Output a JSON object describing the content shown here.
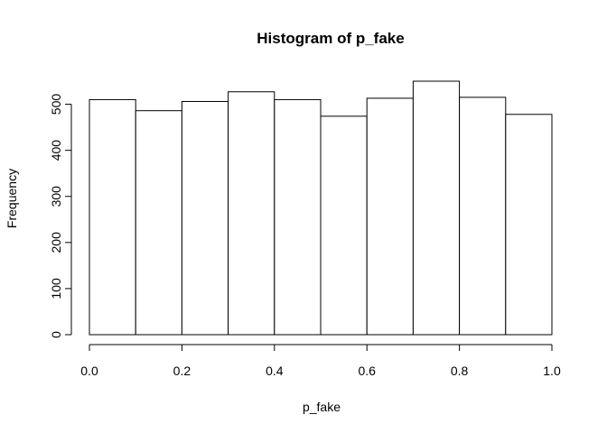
{
  "chart_data": {
    "type": "bar",
    "title": "Histogram of p_fake",
    "xlabel": "p_fake",
    "ylabel": "Frequency",
    "bins": [
      {
        "start": 0.0,
        "end": 0.1,
        "value": 510
      },
      {
        "start": 0.1,
        "end": 0.2,
        "value": 486
      },
      {
        "start": 0.2,
        "end": 0.3,
        "value": 506
      },
      {
        "start": 0.3,
        "end": 0.4,
        "value": 527
      },
      {
        "start": 0.4,
        "end": 0.5,
        "value": 510
      },
      {
        "start": 0.5,
        "end": 0.6,
        "value": 474
      },
      {
        "start": 0.6,
        "end": 0.7,
        "value": 513
      },
      {
        "start": 0.7,
        "end": 0.8,
        "value": 550
      },
      {
        "start": 0.8,
        "end": 0.9,
        "value": 515
      },
      {
        "start": 0.9,
        "end": 1.0,
        "value": 478
      }
    ],
    "xlim": [
      0.0,
      1.0
    ],
    "ylim": [
      0,
      550
    ],
    "x_ticks": [
      "0.0",
      "0.2",
      "0.4",
      "0.6",
      "0.8",
      "1.0"
    ],
    "y_ticks": [
      "0",
      "100",
      "200",
      "300",
      "400",
      "500"
    ],
    "grid": false,
    "bar_fill": "#ffffff",
    "bar_stroke": "#000000"
  }
}
